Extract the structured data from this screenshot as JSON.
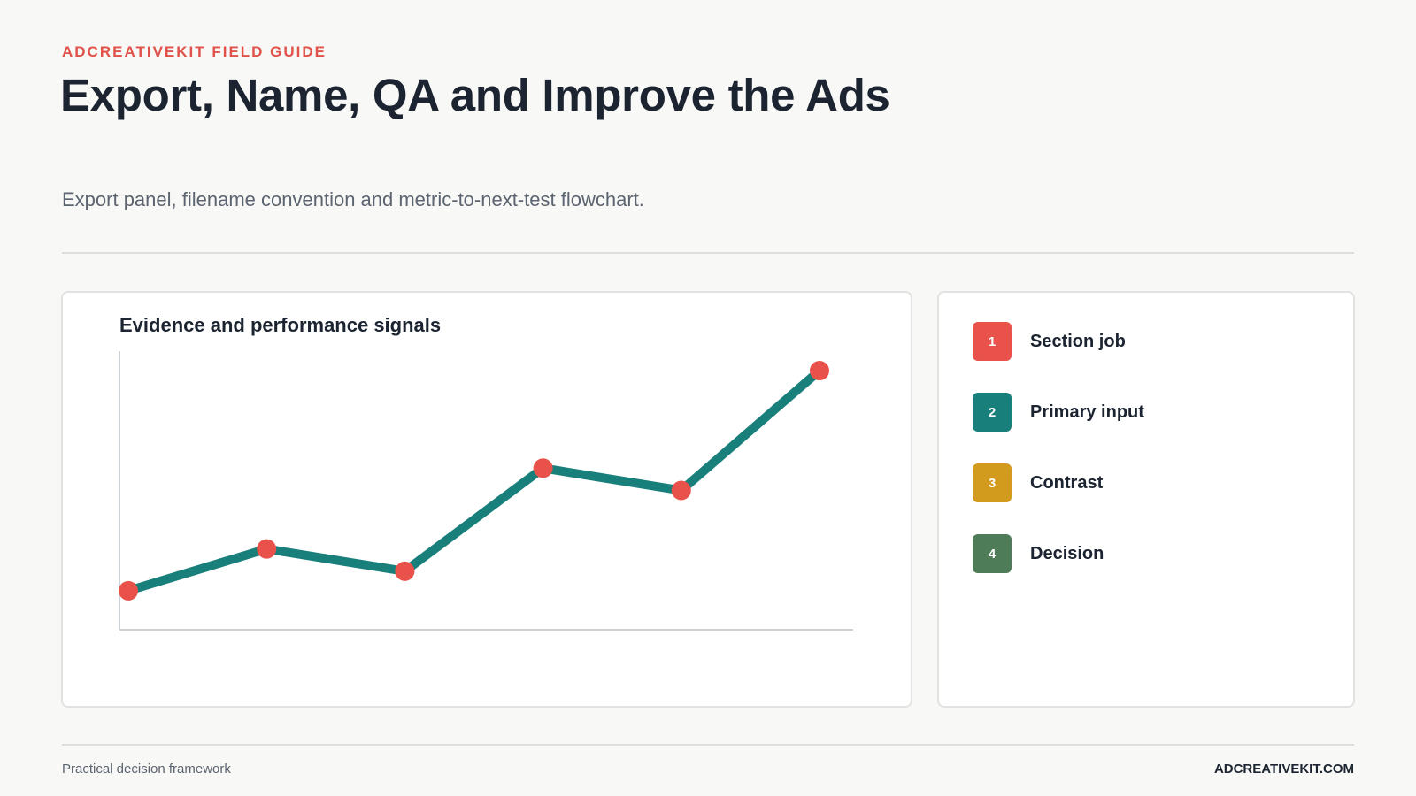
{
  "header": {
    "eyebrow": "ADCREATIVEKIT FIELD GUIDE",
    "title": "Export, Name, QA and Improve the Ads",
    "subtitle": "Export panel, filename convention and metric-to-next-test flowchart."
  },
  "chart_data": {
    "type": "line",
    "title": "Evidence and performance signals",
    "xlabel": "",
    "ylabel": "",
    "x": [
      1,
      2,
      3,
      4,
      5,
      6
    ],
    "series": [
      {
        "values": [
          14,
          29,
          21,
          58,
          50,
          93
        ]
      }
    ],
    "ylim": [
      0,
      100
    ],
    "grid": false,
    "line_color": "#187f7a",
    "marker_color": "#e8524a"
  },
  "legend": {
    "items": [
      {
        "number": "1",
        "label": "Section job",
        "color": "#e8524a"
      },
      {
        "number": "2",
        "label": "Primary input",
        "color": "#187f7a"
      },
      {
        "number": "3",
        "label": "Contrast",
        "color": "#d39b1e"
      },
      {
        "number": "4",
        "label": "Decision",
        "color": "#4e7c58"
      }
    ]
  },
  "footer": {
    "left": "Practical decision framework",
    "right": "ADCREATIVEKIT.COM"
  }
}
